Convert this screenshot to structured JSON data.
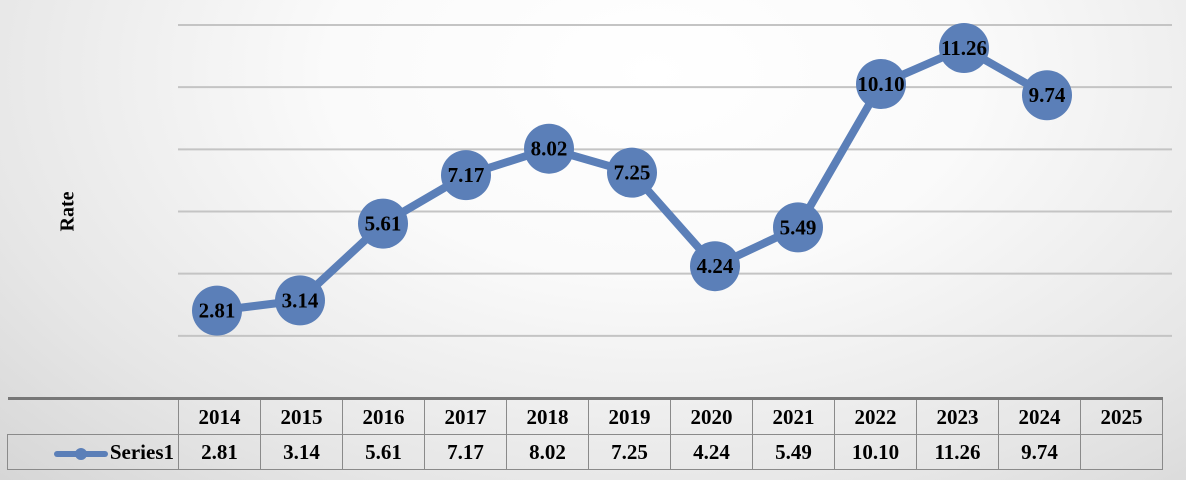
{
  "chart_data": {
    "type": "line",
    "title": "",
    "xlabel": "",
    "ylabel": "Rate",
    "ylim": [
      0,
      12
    ],
    "y_gridlines": [
      2,
      4,
      6,
      8,
      10,
      12
    ],
    "grid": true,
    "categories": [
      "2014",
      "2015",
      "2016",
      "2017",
      "2018",
      "2019",
      "2020",
      "2021",
      "2022",
      "2023",
      "2024",
      "2025"
    ],
    "series": [
      {
        "name": "Series1",
        "color": "#5b7fb8",
        "values": [
          2.81,
          3.14,
          5.61,
          7.17,
          8.02,
          7.25,
          4.24,
          5.49,
          10.1,
          11.26,
          9.74,
          null
        ],
        "labels": [
          "2.81",
          "3.14",
          "5.61",
          "7.17",
          "8.02",
          "7.25",
          "4.24",
          "5.49",
          "10.10",
          "11.26",
          "9.74",
          ""
        ]
      }
    ],
    "data_table": true,
    "legend": "data-table-left"
  }
}
